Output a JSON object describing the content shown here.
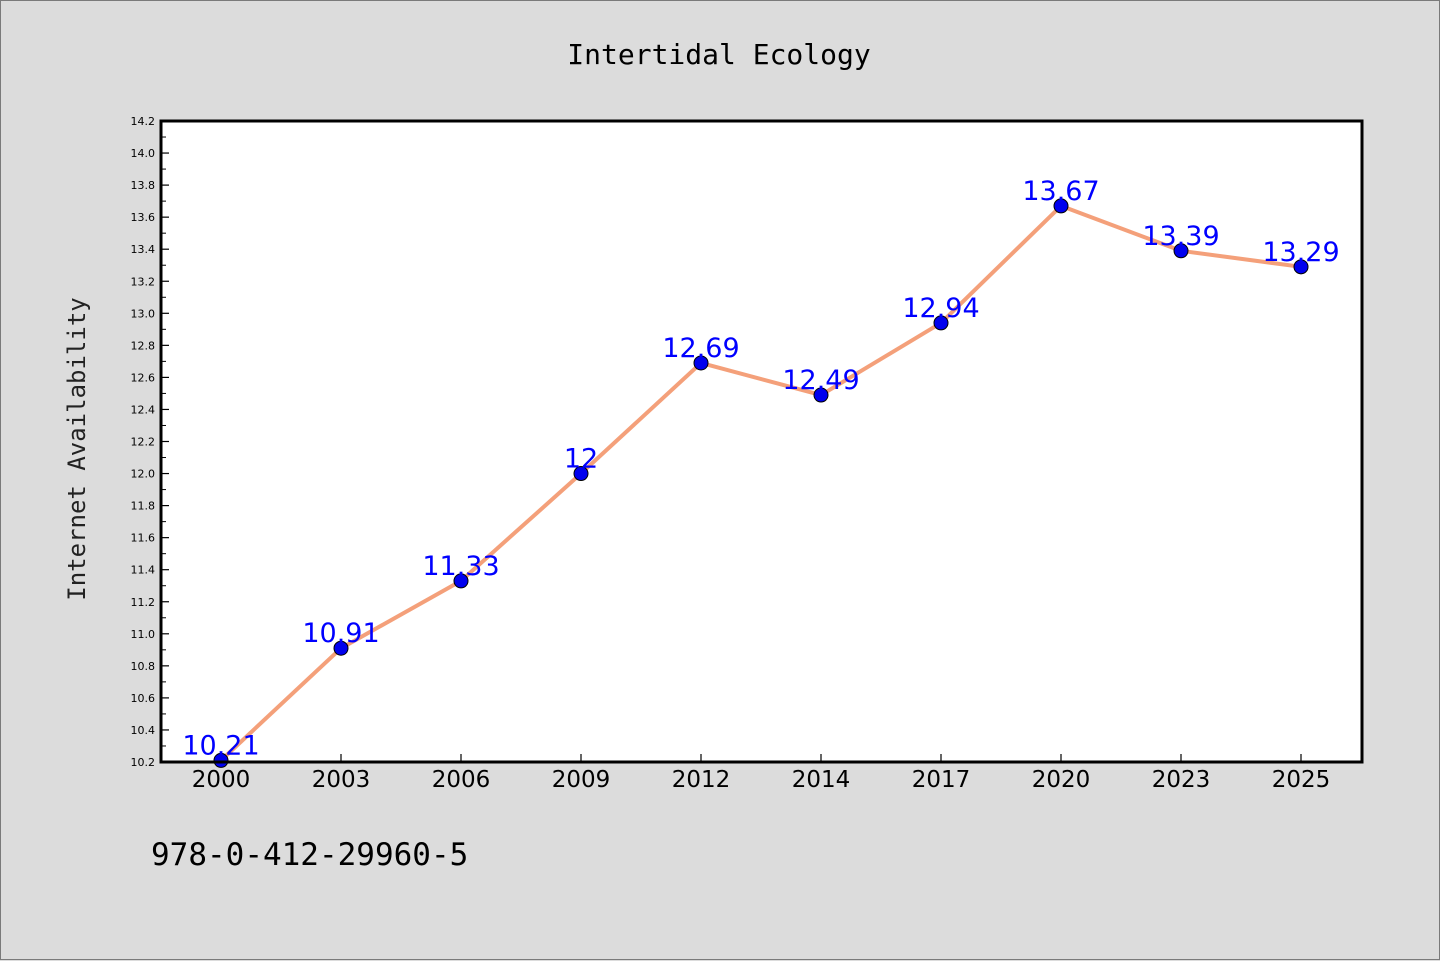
{
  "chart_data": {
    "type": "line",
    "title": "Intertidal Ecology",
    "xlabel": "",
    "ylabel": "Internet Availability",
    "categories": [
      "2000",
      "2003",
      "2006",
      "2009",
      "2012",
      "2014",
      "2017",
      "2020",
      "2023",
      "2025"
    ],
    "values": [
      10.21,
      10.91,
      11.33,
      12,
      12.69,
      12.49,
      12.94,
      13.67,
      13.39,
      13.29
    ],
    "data_labels": [
      "10.21",
      "10.91",
      "11.33",
      "12",
      "12.69",
      "12.49",
      "12.94",
      "13.67",
      "13.39",
      "13.29"
    ],
    "ylim": [
      10.2,
      14.2
    ],
    "yticks": [
      "10.2",
      "10.4",
      "10.6",
      "10.8",
      "11.0",
      "11.2",
      "11.4",
      "11.6",
      "11.8",
      "12.0",
      "12.2",
      "12.4",
      "12.6",
      "12.8",
      "13.0",
      "13.2",
      "13.4",
      "13.6",
      "13.8",
      "14.0",
      "14.2"
    ],
    "grid": false,
    "line_color": "#f4a07a",
    "marker_color": "#0000ee",
    "label_color": "#0000ff"
  },
  "footer_text": "978-0-412-29960-5"
}
